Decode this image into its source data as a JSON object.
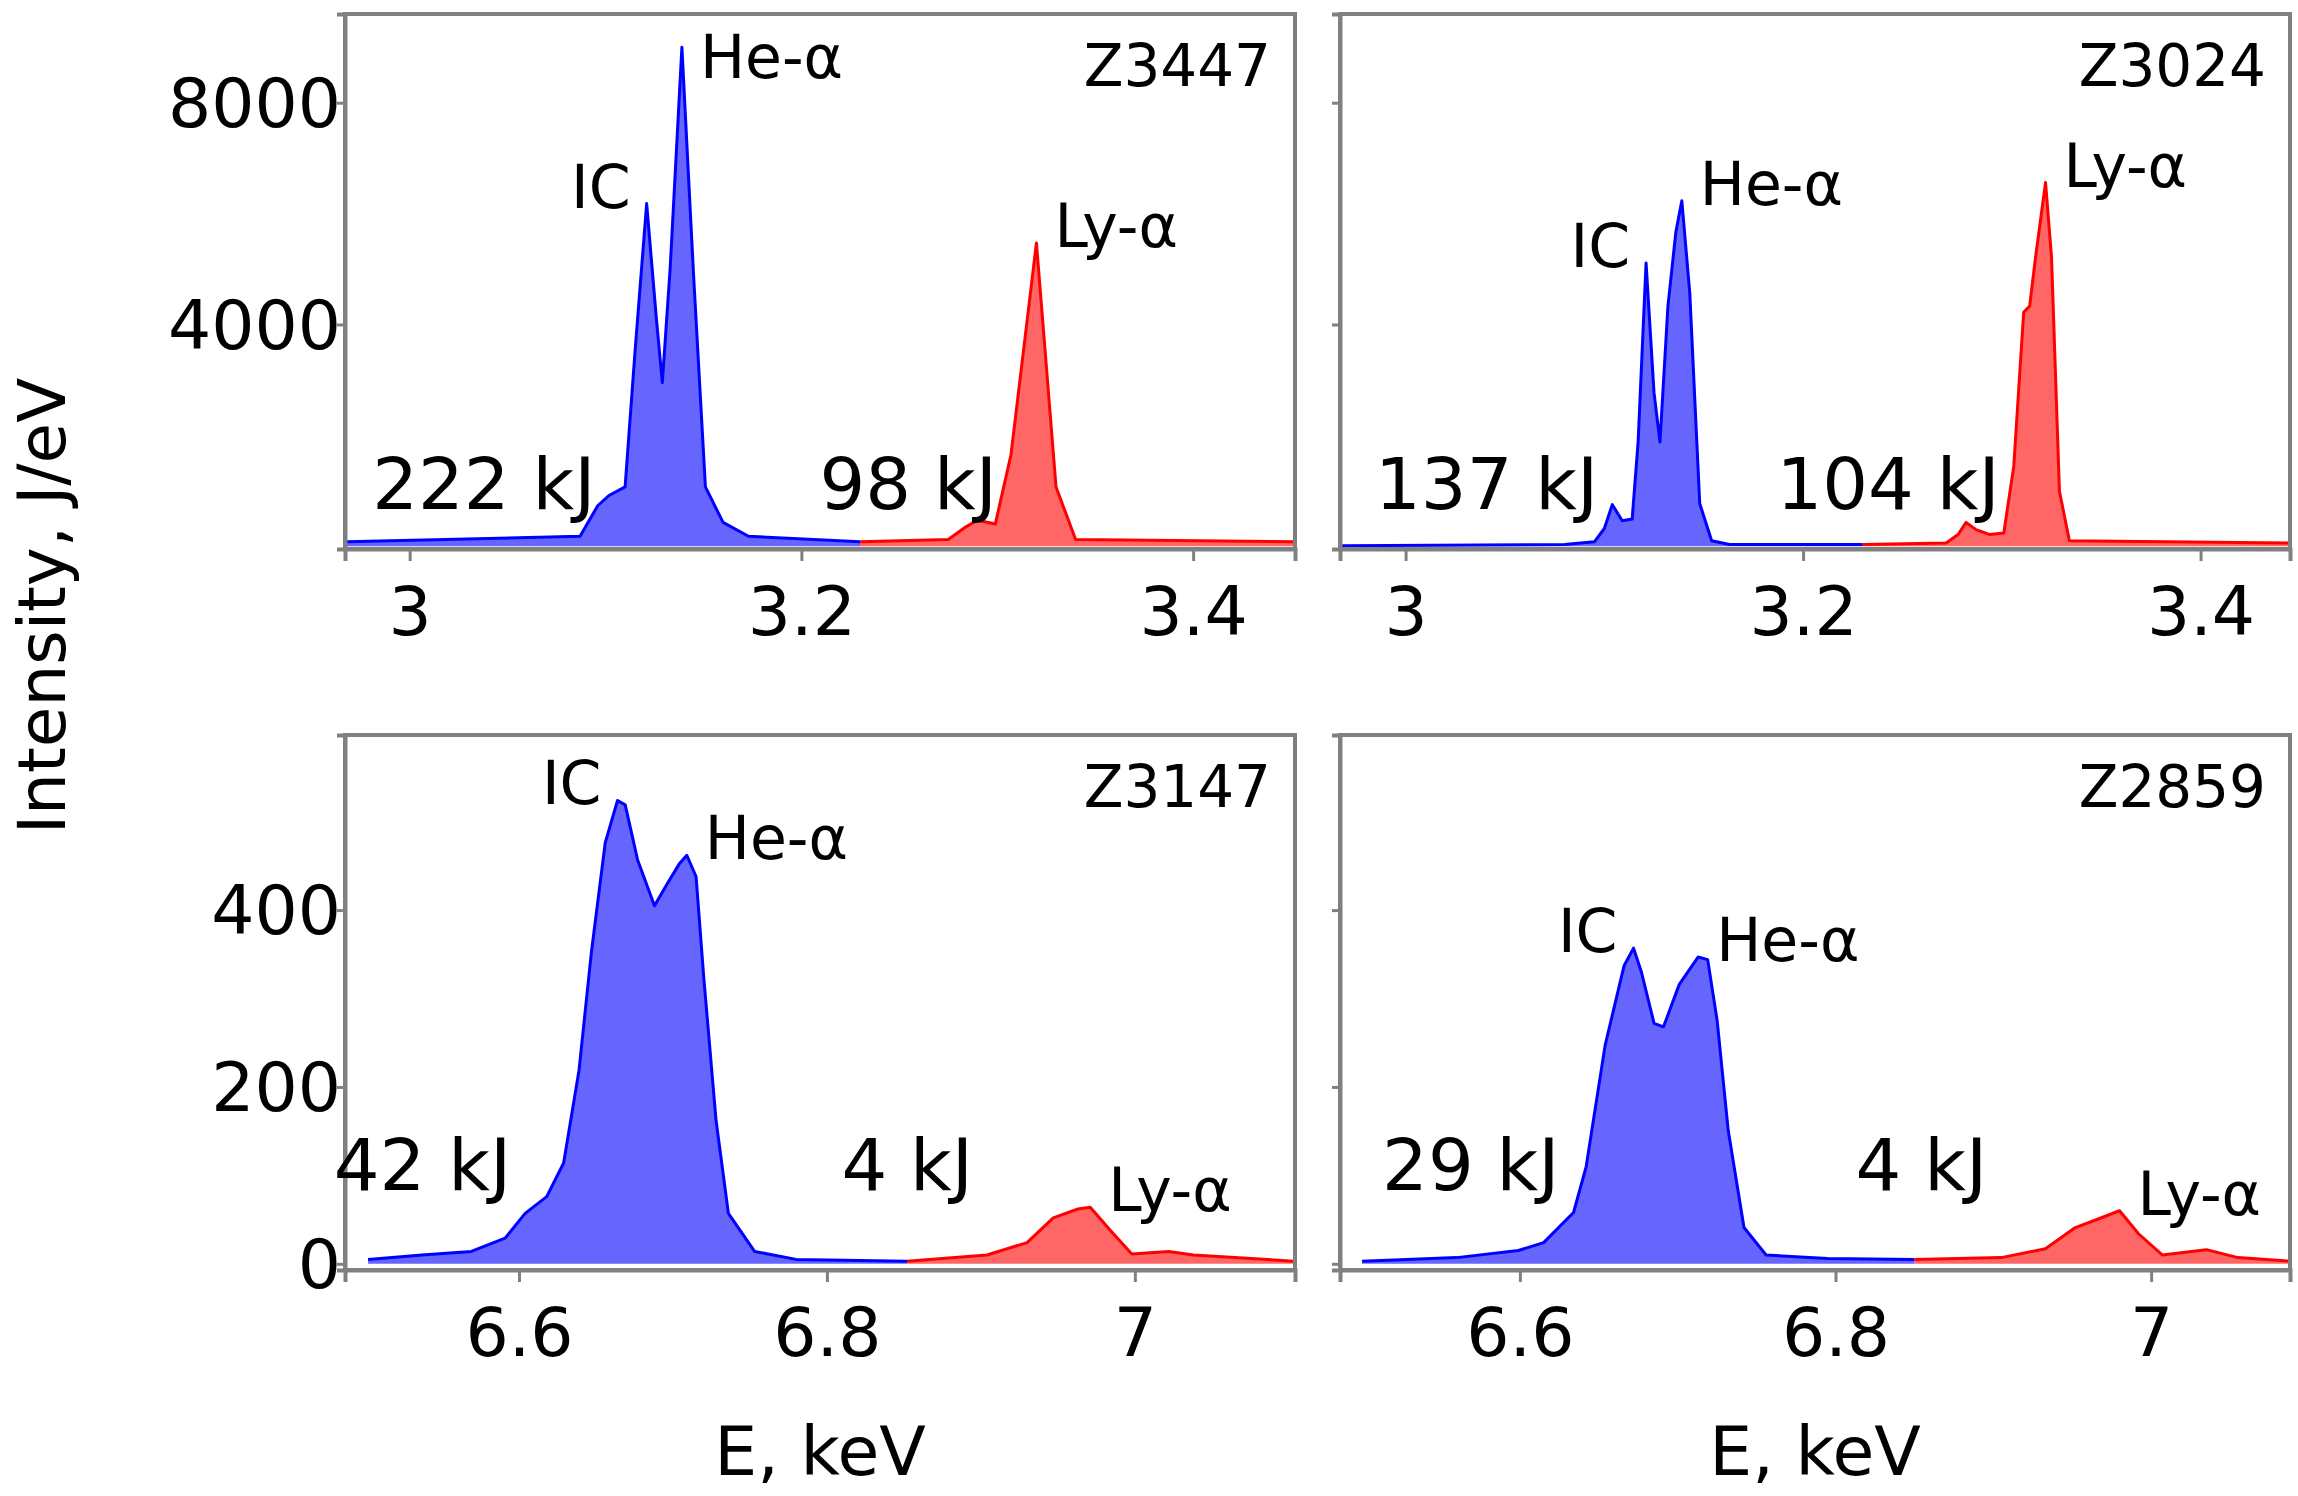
{
  "chart_data": [
    {
      "type": "area",
      "ylabel": "Intensity, J/eV",
      "xlim": [
        2.967,
        3.452
      ],
      "xticks": [
        3,
        3.2,
        3.4
      ],
      "ylim": [
        -50,
        9600
      ],
      "yticks": [
        4000,
        8000
      ],
      "series": [
        {
          "color": "#0000ff",
          "x": [
            2.968,
            3.087,
            3.096,
            3.102,
            3.11,
            3.115,
            3.121,
            3.126,
            3.129,
            3.133,
            3.139,
            3.145,
            3.151,
            3.16,
            3.173,
            3.23
          ],
          "values": [
            80,
            180,
            730,
            920,
            1070,
            3480,
            6180,
            4090,
            2950,
            5010,
            9000,
            4860,
            1070,
            430,
            180,
            80
          ]
        },
        {
          "color": "#ff0000",
          "x": [
            3.23,
            3.275,
            3.284,
            3.29,
            3.299,
            3.307,
            3.32,
            3.33,
            3.34,
            3.452
          ],
          "values": [
            80,
            120,
            350,
            470,
            400,
            1650,
            5470,
            1070,
            120,
            80
          ]
        }
      ],
      "annotations": [
        "Z3447",
        "222 kJ",
        "98 kJ",
        {
          "text": "IC",
          "x": 3.121,
          "y": 6180
        },
        {
          "text": "He-α",
          "x": 3.139,
          "y": 9000
        },
        {
          "text": "Ly-α",
          "x": 3.32,
          "y": 5470
        }
      ]
    },
    {
      "type": "area",
      "xlim": [
        2.967,
        3.445
      ],
      "xticks": [
        3,
        3.2,
        3.4
      ],
      "ylim": [
        -50,
        9600
      ],
      "yticks": [
        4000,
        8000
      ],
      "tick_labels": "x",
      "series": [
        {
          "color": "#0000ff",
          "x": [
            2.968,
            3.08,
            3.095,
            3.1,
            3.104,
            3.109,
            3.114,
            3.117,
            3.121,
            3.125,
            3.128,
            3.132,
            3.136,
            3.139,
            3.143,
            3.148,
            3.154,
            3.163,
            3.23
          ],
          "values": [
            10,
            30,
            80,
            320,
            750,
            460,
            490,
            1880,
            5110,
            2770,
            1880,
            4330,
            5670,
            6230,
            4560,
            770,
            100,
            30,
            30
          ]
        },
        {
          "color": "#ff0000",
          "x": [
            3.23,
            3.272,
            3.278,
            3.282,
            3.287,
            3.294,
            3.301,
            3.306,
            3.311,
            3.314,
            3.317,
            3.322,
            3.325,
            3.329,
            3.334,
            3.445
          ],
          "values": [
            30,
            60,
            210,
            430,
            300,
            210,
            240,
            1440,
            4220,
            4330,
            5220,
            6560,
            5220,
            990,
            100,
            60
          ]
        }
      ],
      "annotations": [
        "Z3024",
        "137 kJ",
        "104 kJ",
        {
          "text": "IC",
          "x": 3.121,
          "y": 5110
        },
        {
          "text": "He-α",
          "x": 3.139,
          "y": 6230
        },
        {
          "text": "Ly-α",
          "x": 3.322,
          "y": 6560
        }
      ]
    },
    {
      "type": "area",
      "xlabel": "E, keV",
      "xlim": [
        6.487,
        7.104
      ],
      "xticks": [
        6.6,
        6.8,
        7
      ],
      "ylim": [
        -7,
        598
      ],
      "yticks": [
        0,
        200,
        400
      ],
      "series": [
        {
          "color": "#0000ff",
          "x": [
            6.502,
            6.537,
            6.569,
            6.591,
            6.604,
            6.618,
            6.629,
            6.639,
            6.647,
            6.656,
            6.664,
            6.669,
            6.677,
            6.688,
            6.696,
            6.704,
            6.709,
            6.715,
            6.72,
            6.728,
            6.736,
            6.753,
            6.78,
            6.852
          ],
          "values": [
            5,
            10,
            14,
            29,
            57,
            76,
            114,
            219,
            352,
            476,
            524,
            519,
            457,
            405,
            429,
            452,
            462,
            438,
            324,
            162,
            57,
            14,
            5,
            3
          ]
        },
        {
          "color": "#ff0000",
          "x": [
            6.852,
            6.904,
            6.93,
            6.947,
            6.963,
            6.971,
            6.984,
            6.998,
            7.022,
            7.038,
            7.103
          ],
          "values": [
            3,
            10,
            24,
            52,
            62,
            64,
            38,
            11,
            14,
            10,
            3
          ]
        }
      ],
      "annotations": [
        "Z3147",
        "42 kJ",
        "4 kJ",
        {
          "text": "IC",
          "x": 6.664,
          "y": 524
        },
        {
          "text": "He-α",
          "x": 6.709,
          "y": 462
        },
        {
          "text": "Ly-α",
          "x": 6.971,
          "y": 64
        }
      ]
    },
    {
      "type": "area",
      "xlabel": "E, keV",
      "xlim": [
        6.486,
        7.088
      ],
      "xticks": [
        6.6,
        6.8,
        7
      ],
      "ylim": [
        -7,
        598
      ],
      "yticks": [
        0,
        200,
        400
      ],
      "tick_labels": "x",
      "series": [
        {
          "color": "#0000ff",
          "x": [
            6.5,
            6.56,
            6.599,
            6.615,
            6.634,
            6.642,
            6.654,
            6.666,
            6.672,
            6.677,
            6.685,
            6.691,
            6.701,
            6.713,
            6.719,
            6.725,
            6.732,
            6.742,
            6.756,
            6.795,
            6.85
          ],
          "values": [
            3,
            7,
            15,
            24,
            58,
            110,
            247,
            337,
            357,
            330,
            272,
            268,
            316,
            347,
            344,
            275,
            151,
            41,
            10,
            6,
            5
          ]
        },
        {
          "color": "#ff0000",
          "x": [
            6.85,
            6.905,
            6.933,
            6.952,
            6.964,
            6.98,
            6.992,
            7.007,
            7.035,
            7.055,
            7.088
          ],
          "values": [
            5,
            7,
            17,
            41,
            49,
            60,
            34,
            10,
            16,
            7,
            3
          ]
        }
      ],
      "annotations": [
        "Z2859",
        "29 kJ",
        "4 kJ",
        {
          "text": "IC",
          "x": 6.672,
          "y": 357
        },
        {
          "text": "He-α",
          "x": 6.713,
          "y": 347
        },
        {
          "text": "Ly-α",
          "x": 6.98,
          "y": 60
        }
      ]
    }
  ]
}
